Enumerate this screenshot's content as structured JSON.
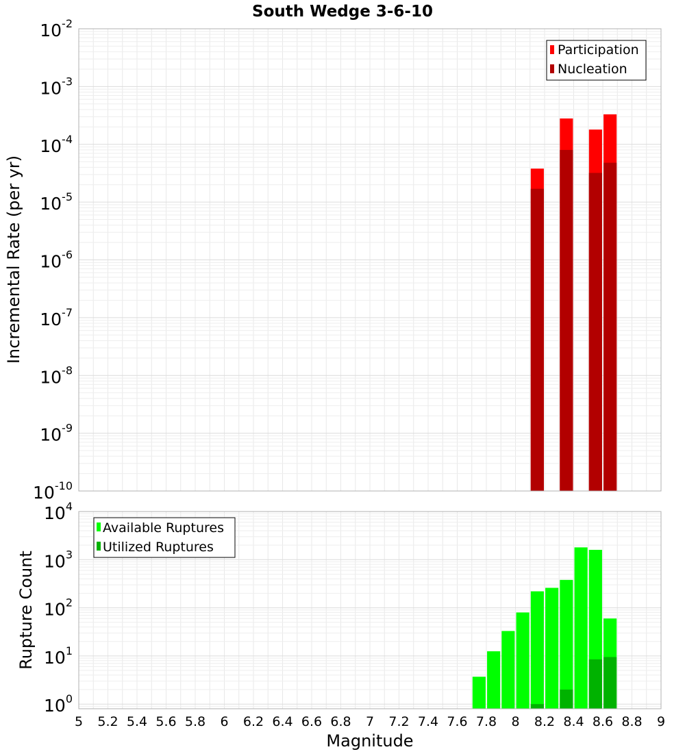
{
  "chart_data": [
    {
      "type": "bar",
      "title": "South Wedge 3-6-10",
      "xlabel": "",
      "ylabel": "Incremental Rate (per yr)",
      "xlim": [
        5,
        9
      ],
      "ylim": [
        1e-10,
        0.01
      ],
      "yscale": "log",
      "grid": true,
      "legend": "top-right",
      "y_ticks": [
        {
          "base": "10",
          "exp": "-10",
          "value": 1e-10
        },
        {
          "base": "10",
          "exp": "-9",
          "value": 1e-09
        },
        {
          "base": "10",
          "exp": "-8",
          "value": 1e-08
        },
        {
          "base": "10",
          "exp": "-7",
          "value": 1e-07
        },
        {
          "base": "10",
          "exp": "-6",
          "value": 1e-06
        },
        {
          "base": "10",
          "exp": "-5",
          "value": 1e-05
        },
        {
          "base": "10",
          "exp": "-4",
          "value": 0.0001
        },
        {
          "base": "10",
          "exp": "-3",
          "value": 0.001
        },
        {
          "base": "10",
          "exp": "-2",
          "value": 0.01
        }
      ],
      "bar_width": 0.09,
      "series": [
        {
          "name": "Participation",
          "color": "#ff0000",
          "x": [
            8.15,
            8.35,
            8.55,
            8.65
          ],
          "values": [
            3.8e-05,
            0.00028,
            0.00018,
            0.00033
          ]
        },
        {
          "name": "Nucleation",
          "color": "#b20000",
          "x": [
            8.15,
            8.35,
            8.55,
            8.65
          ],
          "values": [
            1.7e-05,
            8e-05,
            3.2e-05,
            4.8e-05
          ]
        }
      ]
    },
    {
      "type": "bar",
      "title": "",
      "xlabel": "Magnitude",
      "ylabel": "Rupture Count",
      "xlim": [
        5,
        9
      ],
      "ylim": [
        0.8,
        10000
      ],
      "yscale": "log",
      "grid": true,
      "legend": "top-left",
      "x_ticks": [
        "5",
        "5.2",
        "5.4",
        "5.6",
        "5.8",
        "6",
        "6.2",
        "6.4",
        "6.6",
        "6.8",
        "7",
        "7.2",
        "7.4",
        "7.6",
        "7.8",
        "8",
        "8.2",
        "8.4",
        "8.6",
        "8.8",
        "9"
      ],
      "x_tick_values": [
        5,
        5.2,
        5.4,
        5.6,
        5.8,
        6,
        6.2,
        6.4,
        6.6,
        6.8,
        7,
        7.2,
        7.4,
        7.6,
        7.8,
        8,
        8.2,
        8.4,
        8.6,
        8.8,
        9
      ],
      "y_ticks": [
        {
          "base": "10",
          "exp": "0",
          "value": 1
        },
        {
          "base": "10",
          "exp": "1",
          "value": 10
        },
        {
          "base": "10",
          "exp": "2",
          "value": 100
        },
        {
          "base": "10",
          "exp": "3",
          "value": 1000
        },
        {
          "base": "10",
          "exp": "4",
          "value": 10000
        }
      ],
      "bar_width": 0.09,
      "series": [
        {
          "name": "Available Ruptures",
          "color": "#00ff00",
          "x": [
            7.75,
            7.85,
            7.95,
            8.05,
            8.15,
            8.25,
            8.35,
            8.45,
            8.55,
            8.65
          ],
          "values": [
            3.7,
            12.5,
            33,
            80,
            220,
            260,
            380,
            1800,
            1600,
            60
          ]
        },
        {
          "name": "Utilized Ruptures",
          "color": "#00b200",
          "x": [
            8.15,
            8.35,
            8.55,
            8.65
          ],
          "values": [
            1,
            2,
            8.5,
            9.5
          ]
        }
      ]
    }
  ]
}
